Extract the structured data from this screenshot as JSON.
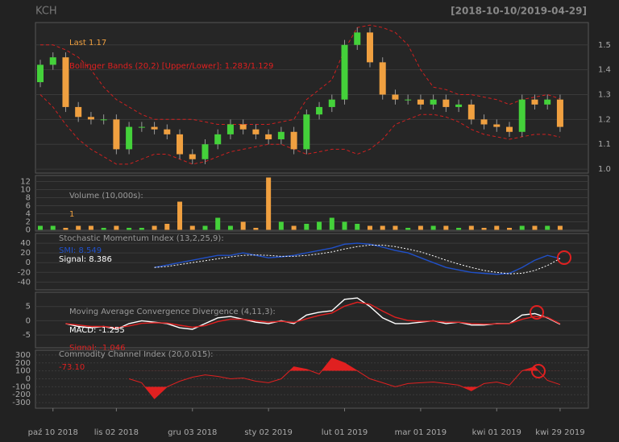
{
  "chart_data": [
    {
      "type": "candlestick",
      "title": "KCH",
      "subtitle": "[2018-10-10/2019-04-29]",
      "annotations": [
        {
          "text": "Last 1.17",
          "color": "#f0a040"
        },
        {
          "text": "Bollinger Bands (20,2) [Upper/Lower]: 1.283/1.129",
          "color": "#e02020"
        }
      ],
      "open": [
        1.35,
        1.42,
        1.45,
        1.25,
        1.21,
        1.2,
        1.2,
        1.08,
        1.17,
        1.17,
        1.16,
        1.14,
        1.06,
        1.04,
        1.1,
        1.14,
        1.18,
        1.16,
        1.14,
        1.12,
        1.15,
        1.08,
        1.22,
        1.25,
        1.28,
        1.5,
        1.55,
        1.43,
        1.3,
        1.28,
        1.28,
        1.26,
        1.28,
        1.25,
        1.26,
        1.2,
        1.18,
        1.17,
        1.15,
        1.28,
        1.26,
        1.28
      ],
      "high": [
        1.44,
        1.47,
        1.47,
        1.27,
        1.23,
        1.22,
        1.22,
        1.19,
        1.19,
        1.19,
        1.18,
        1.16,
        1.08,
        1.12,
        1.16,
        1.2,
        1.2,
        1.18,
        1.16,
        1.17,
        1.17,
        1.24,
        1.27,
        1.3,
        1.52,
        1.57,
        1.57,
        1.45,
        1.32,
        1.3,
        1.3,
        1.3,
        1.3,
        1.28,
        1.28,
        1.22,
        1.2,
        1.19,
        1.3,
        1.3,
        1.3,
        1.3
      ],
      "low": [
        1.33,
        1.4,
        1.23,
        1.19,
        1.18,
        1.18,
        1.06,
        1.06,
        1.15,
        1.14,
        1.12,
        1.04,
        1.02,
        1.02,
        1.08,
        1.12,
        1.14,
        1.12,
        1.1,
        1.1,
        1.06,
        1.06,
        1.2,
        1.23,
        1.26,
        1.48,
        1.41,
        1.28,
        1.26,
        1.26,
        1.24,
        1.24,
        1.23,
        1.23,
        1.18,
        1.16,
        1.15,
        1.13,
        1.13,
        1.24,
        1.24,
        1.15
      ],
      "close": [
        1.42,
        1.45,
        1.25,
        1.21,
        1.2,
        1.2,
        1.08,
        1.17,
        1.17,
        1.16,
        1.14,
        1.06,
        1.04,
        1.1,
        1.14,
        1.18,
        1.16,
        1.14,
        1.12,
        1.15,
        1.08,
        1.22,
        1.25,
        1.28,
        1.5,
        1.55,
        1.43,
        1.3,
        1.28,
        1.28,
        1.26,
        1.28,
        1.25,
        1.26,
        1.2,
        1.18,
        1.17,
        1.15,
        1.28,
        1.26,
        1.28,
        1.17
      ],
      "up_color": "#44d13a",
      "down_color": "#f0a040",
      "overlays": [
        {
          "color": "#d02020",
          "values": [
            1.5,
            1.5,
            1.48,
            1.45,
            1.4,
            1.33,
            1.28,
            1.25,
            1.22,
            1.2,
            1.2,
            1.2,
            1.2,
            1.19,
            1.18,
            1.18,
            1.18,
            1.18,
            1.18,
            1.19,
            1.2,
            1.28,
            1.32,
            1.36,
            1.48,
            1.57,
            1.58,
            1.57,
            1.55,
            1.5,
            1.4,
            1.33,
            1.32,
            1.3,
            1.3,
            1.29,
            1.28,
            1.26,
            1.28,
            1.29,
            1.3,
            1.283
          ]
        },
        {
          "color": "#d02020",
          "values": [
            1.3,
            1.25,
            1.18,
            1.12,
            1.08,
            1.05,
            1.02,
            1.02,
            1.04,
            1.06,
            1.06,
            1.04,
            1.02,
            1.03,
            1.05,
            1.07,
            1.08,
            1.09,
            1.1,
            1.1,
            1.08,
            1.06,
            1.07,
            1.08,
            1.08,
            1.06,
            1.08,
            1.12,
            1.18,
            1.2,
            1.22,
            1.22,
            1.21,
            1.19,
            1.16,
            1.14,
            1.13,
            1.12,
            1.13,
            1.14,
            1.14,
            1.129
          ]
        }
      ],
      "ylim": [
        0.984,
        1.59
      ],
      "yticks": [
        {
          "value": 1.0,
          "label": "1.0"
        },
        1.1,
        1.2,
        1.3,
        1.4,
        1.5
      ],
      "grid": true
    },
    {
      "type": "bar",
      "annotations": [
        {
          "text": "Volume (10,000s):",
          "color": "#9a9a9a"
        },
        {
          "text": "1",
          "color": "#f0a040"
        }
      ],
      "values": [
        1,
        1,
        0.5,
        1,
        1,
        0.5,
        1,
        0.5,
        0.5,
        1,
        1.5,
        7,
        1,
        1,
        3,
        1,
        2,
        0.5,
        13,
        2,
        1,
        1.5,
        2,
        3,
        2,
        1.5,
        1,
        1,
        1,
        0.5,
        1,
        1,
        1,
        0.5,
        1,
        0.5,
        1,
        0.5,
        1,
        1,
        1,
        1
      ],
      "ylim": [
        -0.3,
        13.5
      ],
      "yticks": [
        0,
        2,
        4,
        6,
        8,
        10,
        12
      ],
      "grid": true
    },
    {
      "type": "line",
      "annotations": [
        {
          "text": "Stochastic Momentum Index (13,2,25,9):",
          "color": "#9a9a9a"
        },
        {
          "text": "SMI: 8.549",
          "color": "#2050c8"
        },
        {
          "text": "Signal: 8.386",
          "color": "#ffffff"
        }
      ],
      "series": [
        {
          "color": "#2050c8",
          "dash": false,
          "values": [
            null,
            null,
            null,
            null,
            null,
            null,
            null,
            null,
            null,
            -10,
            -5,
            0,
            5,
            10,
            15,
            15,
            20,
            15,
            10,
            12,
            15,
            20,
            25,
            30,
            38,
            40,
            38,
            32,
            25,
            20,
            10,
            0,
            -10,
            -15,
            -20,
            -22,
            -24,
            -22,
            -10,
            5,
            15,
            8.549
          ]
        },
        {
          "color": "#ffffff",
          "dash": true,
          "values": [
            null,
            null,
            null,
            null,
            null,
            null,
            null,
            null,
            null,
            -10,
            -8,
            -4,
            0,
            4,
            8,
            12,
            15,
            16,
            15,
            13,
            13,
            15,
            18,
            22,
            28,
            33,
            36,
            36,
            33,
            28,
            22,
            14,
            5,
            -3,
            -10,
            -16,
            -20,
            -23,
            -22,
            -16,
            -6,
            8.386
          ]
        }
      ],
      "ylim": [
        -56,
        60
      ],
      "yticks": [
        40,
        20,
        0,
        -20,
        -40
      ],
      "grid": true
    },
    {
      "type": "line",
      "annotations": [
        {
          "text": "Moving Average Convergence Divergence (4,11,3):",
          "color": "#9a9a9a"
        },
        {
          "text": "MACD: -1.255",
          "color": "#ffffff"
        },
        {
          "text": "Signal: -1.046",
          "color": "#e02020"
        }
      ],
      "series": [
        {
          "color": "#ffffff",
          "dash": false,
          "values": [
            null,
            null,
            -1,
            -2,
            -2.5,
            -2,
            -3,
            -1,
            0,
            -0.5,
            -1,
            -2.5,
            -3,
            -1,
            1,
            1.5,
            0.5,
            -0.5,
            -1,
            0,
            -1,
            2,
            3,
            3.5,
            7.5,
            8,
            5,
            1,
            -1,
            -1,
            -0.5,
            0,
            -1,
            -0.5,
            -1.5,
            -1.5,
            -1,
            -1,
            2,
            2.5,
            1,
            -1.255
          ]
        },
        {
          "color": "#e02020",
          "dash": false,
          "values": [
            null,
            null,
            -1,
            -1.5,
            -2,
            -2,
            -2.5,
            -1.8,
            -0.9,
            -0.7,
            -0.8,
            -1.6,
            -2.3,
            -1.7,
            -0.3,
            0.6,
            0.5,
            0,
            -0.5,
            -0.2,
            -0.6,
            0.7,
            1.9,
            2.7,
            5.1,
            6.5,
            5.8,
            3.4,
            1.2,
            0.1,
            -0.2,
            -0.1,
            -0.5,
            -0.5,
            -1,
            -1.2,
            -1.1,
            -1,
            0.5,
            1.5,
            1.2,
            -1.046
          ]
        }
      ],
      "ylim": [
        -9.5,
        10
      ],
      "yticks": [
        5,
        0,
        -5
      ],
      "grid": true
    },
    {
      "type": "cci",
      "annotations": [
        {
          "text": "Commodity Channel Index (20,0.015):",
          "color": "#9a9a9a"
        },
        {
          "text": "-73.10",
          "color": "#e02020"
        }
      ],
      "categories": [
        null,
        "paź 10 2018",
        null,
        null,
        null,
        null,
        "lis 02 2018",
        null,
        null,
        null,
        null,
        null,
        "gru 03 2018",
        null,
        null,
        null,
        null,
        null,
        "sty 02 2019",
        null,
        null,
        null,
        null,
        null,
        "lut 01 2019",
        null,
        null,
        null,
        null,
        null,
        "mar 01 2019",
        null,
        null,
        null,
        null,
        null,
        "kwi 01 2019",
        null,
        null,
        null,
        null,
        "kwi 29 2019"
      ],
      "series": [
        {
          "color": "#e02020",
          "values": [
            null,
            null,
            null,
            null,
            null,
            null,
            null,
            0,
            -50,
            -250,
            -100,
            -30,
            20,
            50,
            30,
            0,
            10,
            -30,
            -50,
            0,
            150,
            120,
            60,
            260,
            200,
            100,
            0,
            -50,
            -100,
            -60,
            -50,
            -40,
            -60,
            -80,
            -150,
            -60,
            -40,
            -80,
            100,
            150,
            -20,
            -73.1
          ]
        }
      ],
      "fill_above": 100,
      "fill_below": -100,
      "ylim": [
        -370,
        360
      ],
      "yticks": [
        300,
        200,
        100,
        0,
        -100,
        -200,
        -300
      ],
      "grid": true
    }
  ]
}
